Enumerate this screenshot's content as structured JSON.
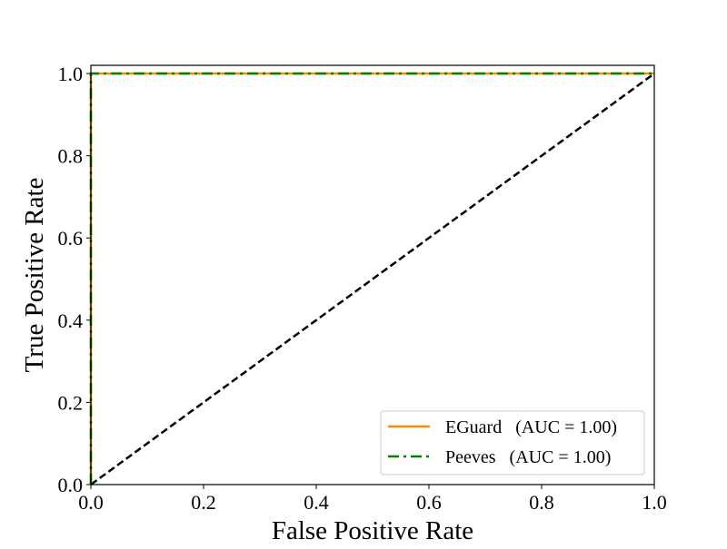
{
  "chart_data": {
    "type": "line",
    "xlabel": "False Positive Rate",
    "ylabel": "True Positive Rate",
    "xlim": [
      0.0,
      1.0
    ],
    "ylim": [
      0.0,
      1.02
    ],
    "x_ticks": [
      "0.0",
      "0.2",
      "0.4",
      "0.6",
      "0.8",
      "1.0"
    ],
    "y_ticks": [
      "0.0",
      "0.2",
      "0.4",
      "0.6",
      "0.8",
      "1.0"
    ],
    "grid": false,
    "legend_position": "lower-right",
    "series": [
      {
        "name": "EGuard",
        "label": "EGuard   (AUC = 1.00)",
        "color": "#ff8c00",
        "style": "solid",
        "x": [
          0.0,
          0.0,
          1.0
        ],
        "y": [
          0.0,
          1.0,
          1.0
        ]
      },
      {
        "name": "Peeves",
        "label": "Peeves   (AUC = 1.00)",
        "color": "#008000",
        "style": "dash-dot",
        "x": [
          0.0,
          0.0,
          1.0
        ],
        "y": [
          0.0,
          1.0,
          1.0
        ]
      },
      {
        "name": "",
        "color": "#000000",
        "style": "dashed",
        "x": [
          0.0,
          1.0
        ],
        "y": [
          0.0,
          1.0
        ]
      }
    ]
  }
}
